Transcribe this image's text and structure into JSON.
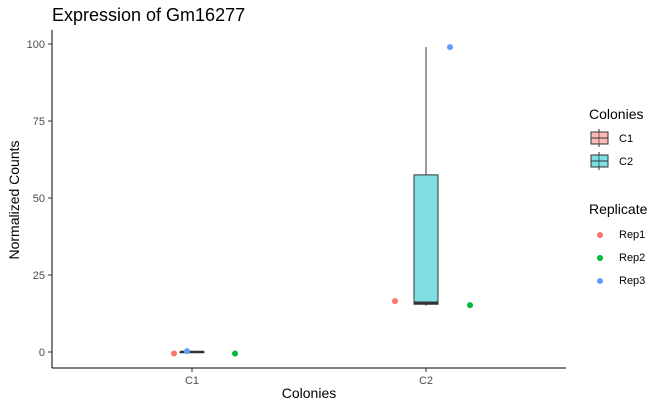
{
  "chart_data": {
    "type": "box",
    "title": "Expression of Gm16277",
    "xlabel": "Colonies",
    "ylabel": "Normalized Counts",
    "categories": [
      "C1",
      "C2"
    ],
    "ylim": [
      -5,
      104
    ],
    "yticks": [
      0,
      25,
      50,
      75,
      100
    ],
    "grid": false,
    "boxes": [
      {
        "category": "C1",
        "min": 0,
        "q1": 0,
        "median": 0,
        "q3": 0,
        "max": 0,
        "color": "#F8766D"
      },
      {
        "category": "C2",
        "min": 15,
        "q1": 15.5,
        "median": 16,
        "q3": 57.5,
        "max": 99,
        "color": "#00BFC4"
      }
    ],
    "points": [
      {
        "category": "C1",
        "replicate": "Rep1",
        "y": -0.5
      },
      {
        "category": "C1",
        "replicate": "Rep2",
        "y": -0.5
      },
      {
        "category": "C1",
        "replicate": "Rep3",
        "y": 0.3
      },
      {
        "category": "C2",
        "replicate": "Rep1",
        "y": 16.5
      },
      {
        "category": "C2",
        "replicate": "Rep2",
        "y": 15.2
      },
      {
        "category": "C2",
        "replicate": "Rep3",
        "y": 99
      }
    ],
    "legends": [
      {
        "title": "Colonies",
        "entries": [
          {
            "label": "C1",
            "color": "#F8766D"
          },
          {
            "label": "C2",
            "color": "#00BFC4"
          }
        ]
      },
      {
        "title": "Replicate",
        "entries": [
          {
            "label": "Rep1",
            "color": "#F8766D"
          },
          {
            "label": "Rep2",
            "color": "#00BA38"
          },
          {
            "label": "Rep3",
            "color": "#619CFF"
          }
        ]
      }
    ],
    "legend_position": "right"
  }
}
